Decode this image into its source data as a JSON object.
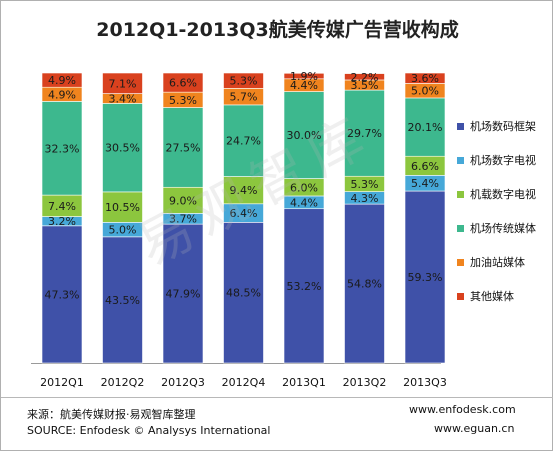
{
  "chart_data": {
    "type": "bar",
    "stacked": true,
    "title": "2012Q1-2013Q3航美传媒广告营收构成",
    "categories": [
      "2012Q1",
      "2012Q2",
      "2012Q3",
      "2012Q4",
      "2013Q1",
      "2013Q2",
      "2013Q3"
    ],
    "series": [
      {
        "name": "机场数码框架",
        "color": "#3F51A8",
        "values": [
          47.3,
          43.5,
          47.9,
          48.5,
          53.2,
          54.8,
          59.3
        ],
        "labels": [
          "47.3%",
          "43.5%",
          "47.9%",
          "48.5%",
          "53.2%",
          "54.8%",
          "59.3%"
        ]
      },
      {
        "name": "机场数字电视",
        "color": "#46A8D8",
        "values": [
          3.2,
          5.0,
          3.7,
          6.4,
          4.4,
          4.3,
          5.4
        ],
        "labels": [
          "3.2%",
          "5.0%",
          "3.7%",
          "6.4%",
          "4.4%",
          "4.3%",
          "5.4%"
        ]
      },
      {
        "name": "机载数字电视",
        "color": "#8CC63E",
        "values": [
          7.4,
          10.5,
          9.0,
          9.4,
          6.0,
          5.3,
          6.6
        ],
        "labels": [
          "7.4%",
          "10.5%",
          "9.0%",
          "9.4%",
          "6.0%",
          "5.3%",
          "6.6%"
        ]
      },
      {
        "name": "机场传统媒体",
        "color": "#3DB88E",
        "values": [
          32.3,
          30.5,
          27.5,
          24.7,
          30.0,
          29.7,
          20.1
        ],
        "labels": [
          "32.3%",
          "30.5%",
          "27.5%",
          "24.7%",
          "30.0%",
          "29.7%",
          "20.1%"
        ]
      },
      {
        "name": "加油站媒体",
        "color": "#F0841E",
        "values": [
          4.9,
          3.4,
          5.3,
          5.7,
          4.4,
          3.5,
          5.0
        ],
        "labels": [
          "4.9%",
          "3.4%",
          "5.3%",
          "5.7%",
          "4.4%",
          "3.5%",
          "5.0%"
        ]
      },
      {
        "name": "其他媒体",
        "color": "#D9411E",
        "values": [
          4.9,
          7.1,
          6.6,
          5.3,
          1.9,
          2.2,
          3.6
        ],
        "labels": [
          "4.9%",
          "7.1%",
          "6.6%",
          "5.3%",
          "1.9%",
          "2.2%",
          "3.6%"
        ]
      }
    ],
    "ylim": [
      0,
      100
    ],
    "grid": false,
    "legend_position": "right"
  },
  "watermark": "易观智库",
  "footer": {
    "source_cn": "来源：航美传媒财报·易观智库整理",
    "source_en": "SOURCE:  Enfodesk © Analysys International",
    "url_enfodesk": "www.enfodesk.com",
    "url_eguan": "www.eguan.cn"
  }
}
